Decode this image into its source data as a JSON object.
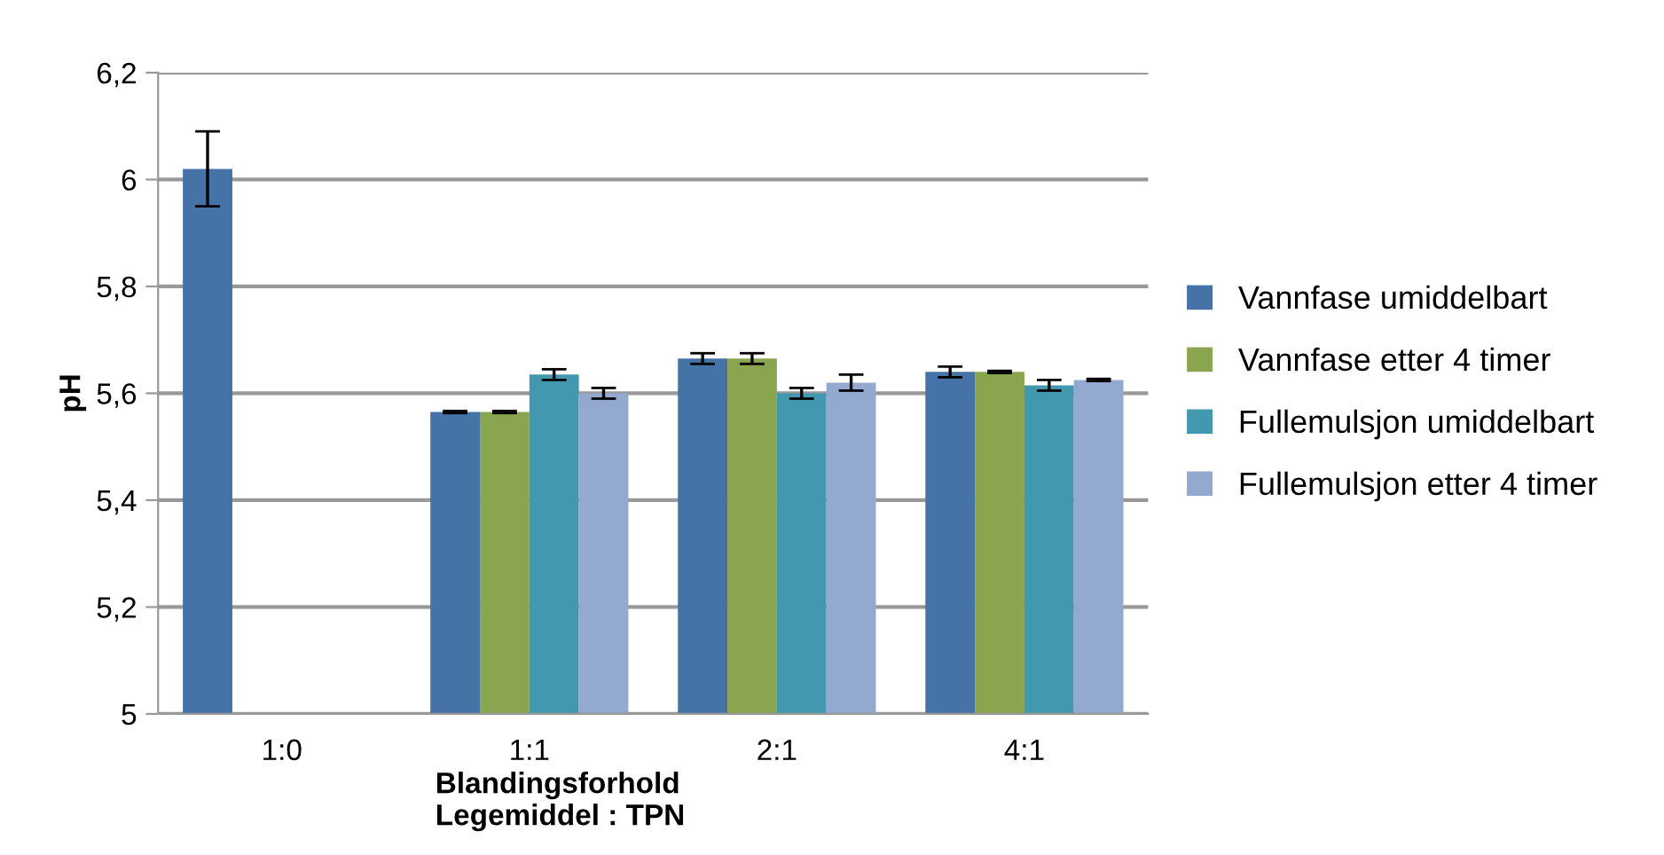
{
  "chart_data": {
    "type": "bar",
    "xlabel": "Blandingsforhold\nLegemiddel : TPN",
    "ylabel": "pH",
    "categories": [
      "1:0",
      "1:1",
      "2:1",
      "4:1"
    ],
    "series": [
      {
        "name": "Vannfase umiddelbart",
        "color": "#4572a7",
        "values": [
          6.02,
          5.565,
          5.665,
          5.64
        ],
        "errors": [
          0.07,
          0.002,
          0.01,
          0.01
        ]
      },
      {
        "name": "Vannfase etter 4 timer",
        "color": "#89a54e",
        "values": [
          null,
          5.565,
          5.665,
          5.64
        ],
        "errors": [
          null,
          0.002,
          0.01,
          0.002
        ]
      },
      {
        "name": "Fullemulsjon umiddelbart",
        "color": "#4198af",
        "values": [
          null,
          5.635,
          5.6,
          5.615
        ],
        "errors": [
          null,
          0.01,
          0.01,
          0.01
        ]
      },
      {
        "name": "Fullemulsjon etter 4 timer",
        "color": "#93a9cf",
        "values": [
          null,
          5.6,
          5.62,
          5.625
        ],
        "errors": [
          null,
          0.01,
          0.015,
          0.002
        ]
      }
    ],
    "ylim": [
      5,
      6.2
    ],
    "yticks": [
      {
        "value": 5,
        "label": "5"
      },
      {
        "value": 5.2,
        "label": "5,2"
      },
      {
        "value": 5.4,
        "label": "5,4"
      },
      {
        "value": 5.6,
        "label": "5,6"
      },
      {
        "value": 5.8,
        "label": "5,8"
      },
      {
        "value": 6,
        "label": "6"
      },
      {
        "value": 6.2,
        "label": "6,2"
      }
    ],
    "grid": "y",
    "legend": "right"
  }
}
